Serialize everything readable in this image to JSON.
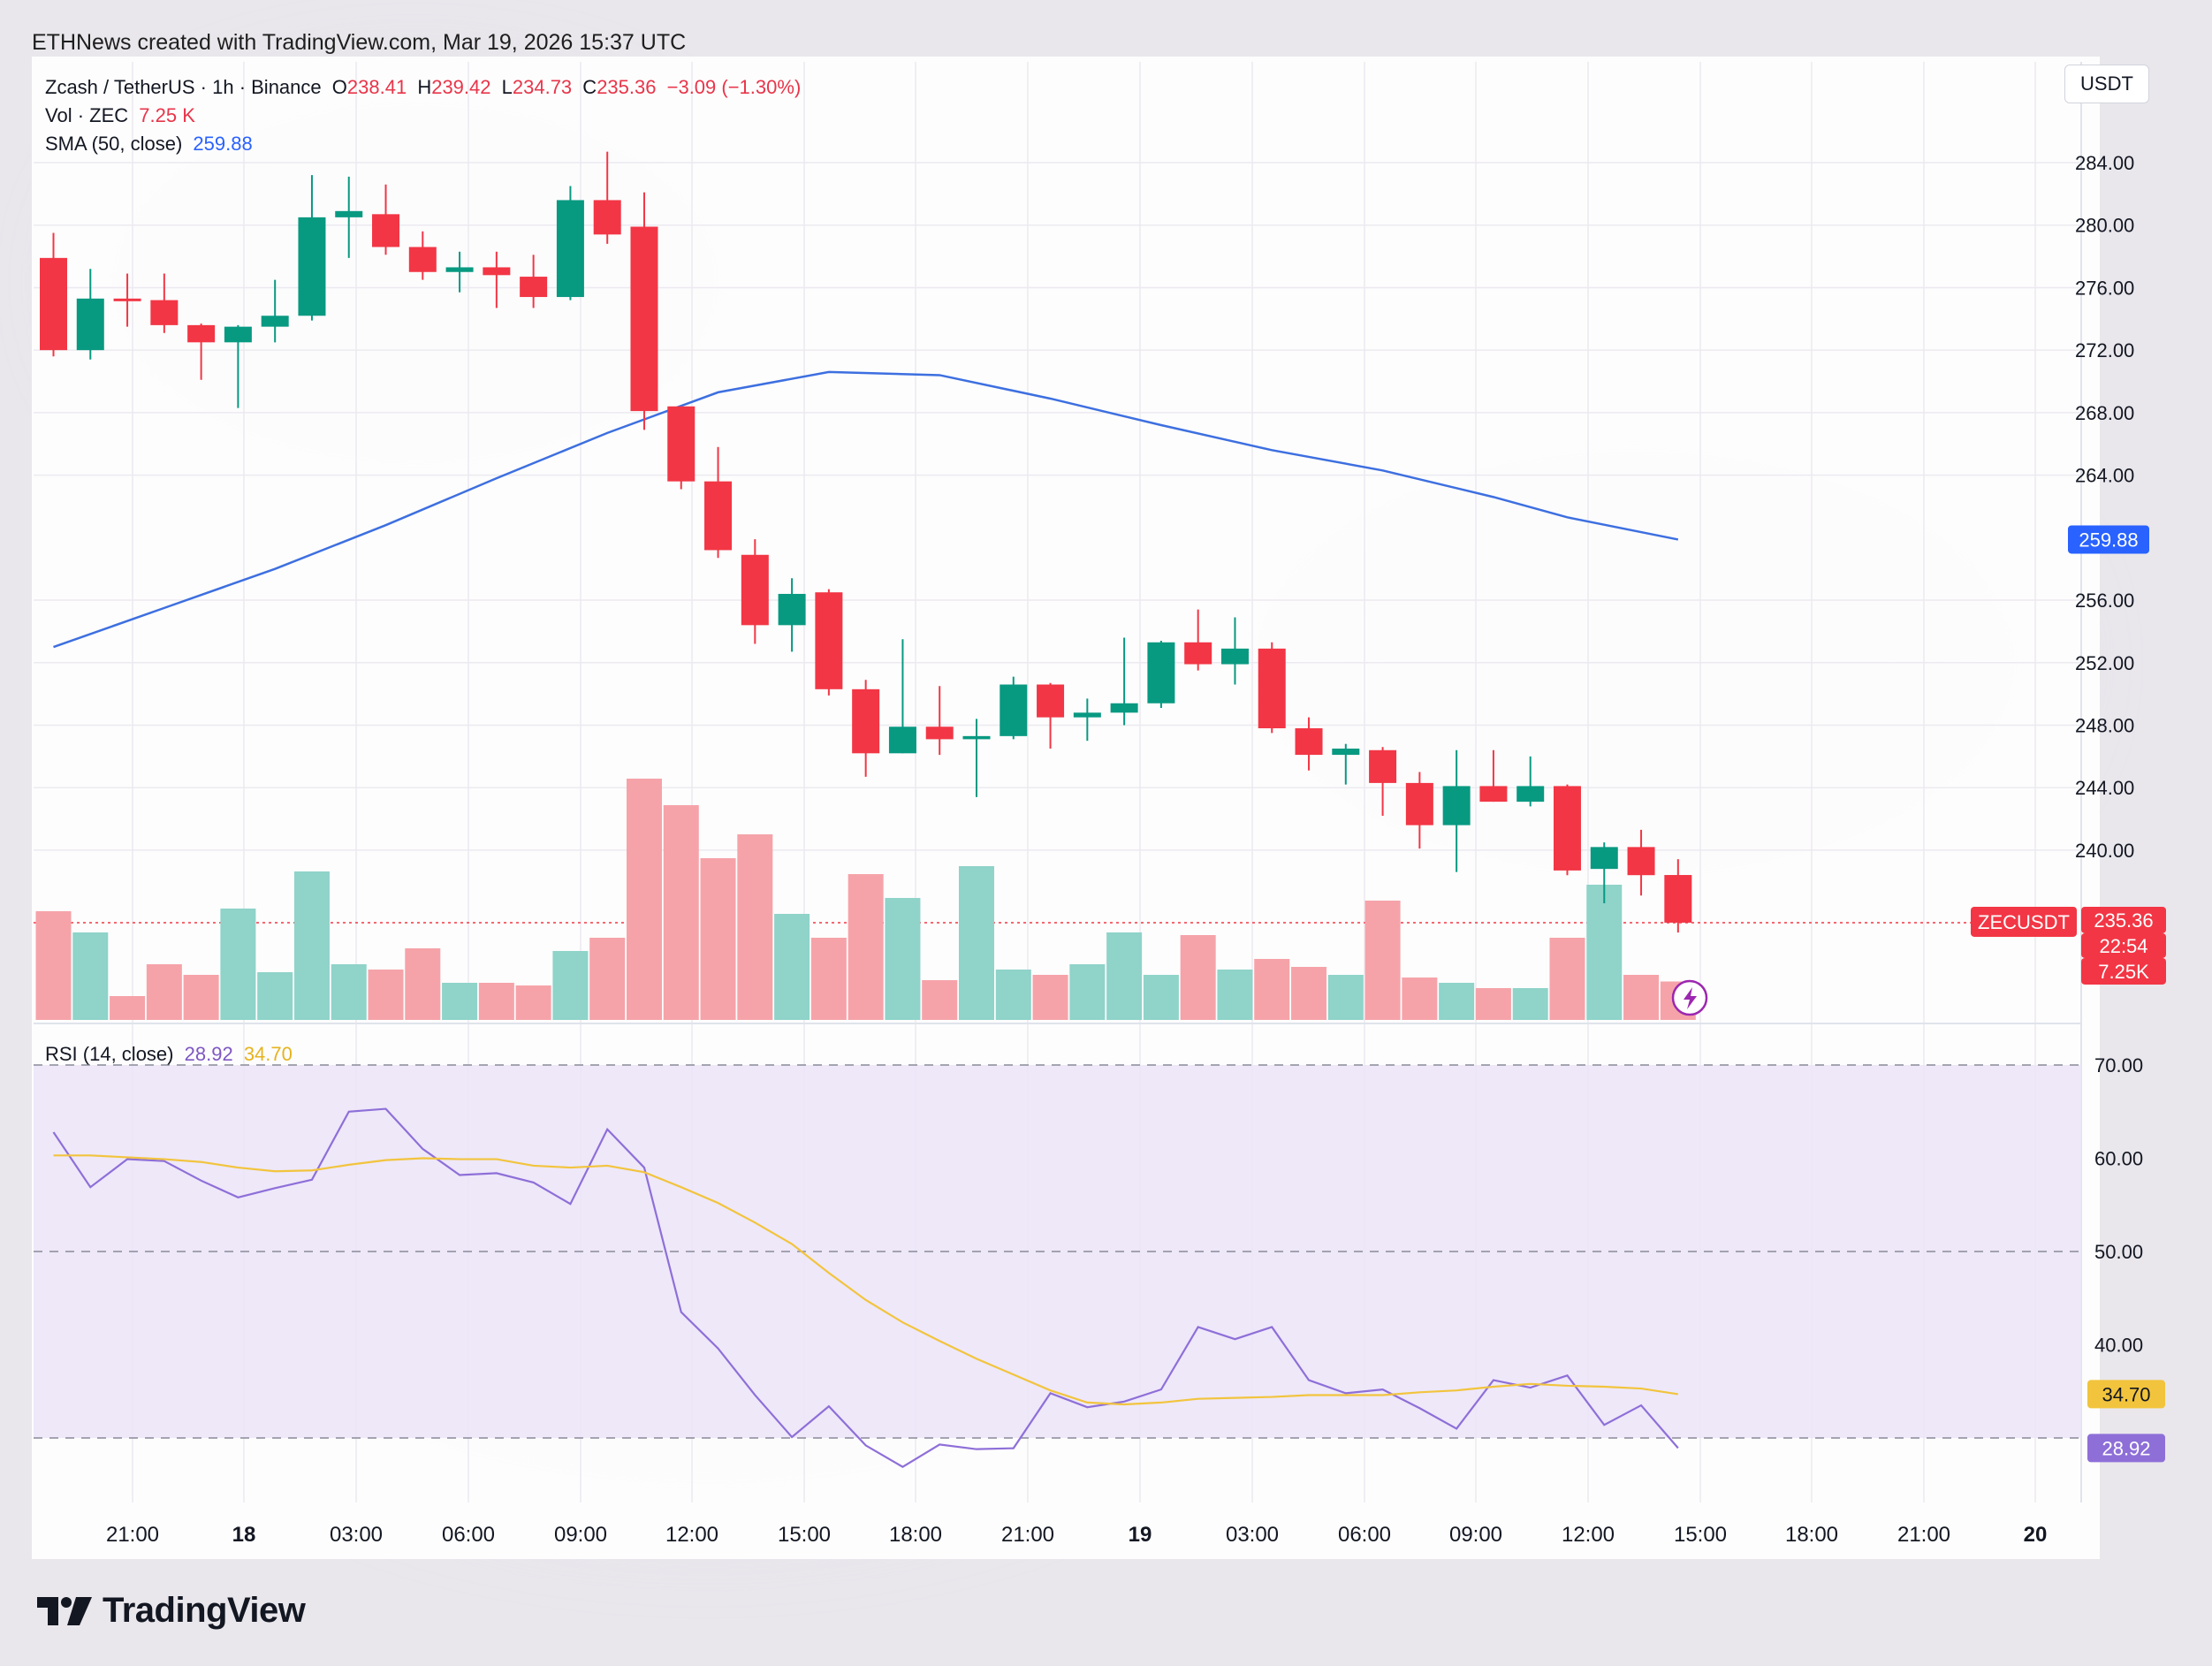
{
  "header": {
    "caption": "ETHNews created with TradingView.com, Mar 19, 2026 15:37 UTC"
  },
  "legend": {
    "symbol": "Zcash / TetherUS · 1h · Binance",
    "o_label": "O",
    "o_value": "238.41",
    "h_label": "H",
    "h_value": "239.42",
    "l_label": "L",
    "l_value": "234.73",
    "c_label": "C",
    "c_value": "235.36",
    "change": "−3.09 (−1.30%)",
    "vol_label": "Vol · ZEC",
    "vol_value": "7.25 K",
    "sma_label": "SMA (50, close)",
    "sma_value": "259.88",
    "rsi_label": "RSI (14, close)",
    "rsi_value": "28.92",
    "rsi_ma_value": "34.70"
  },
  "toolbar": {
    "currency": "USDT"
  },
  "badges": {
    "symbol": "ZECUSDT",
    "price": "235.36",
    "countdown": "22:54",
    "volume": "7.25K",
    "sma": "259.88",
    "rsi_ma": "34.70",
    "rsi": "28.92"
  },
  "brand": {
    "name": "TradingView"
  },
  "colors": {
    "up": "#089981",
    "down": "#f23645",
    "up_volume": "#8fd3c9",
    "down_volume": "#f5a3a9",
    "sma": "#3d6fe0",
    "rsi": "#8e6fd8",
    "rsi_ma": "#f2c43d",
    "rsi_band": "#ece6f8"
  },
  "chart_data": [
    {
      "type": "candlestick",
      "title": "Zcash / TetherUS · 1h · Binance",
      "price_ticks": [
        "284.00",
        "280.00",
        "276.00",
        "272.00",
        "268.00",
        "264.00",
        "256.00",
        "252.00",
        "248.00",
        "244.00",
        "240.00"
      ],
      "ylim": [
        232,
        286
      ],
      "time_ticks": [
        {
          "label": "21:00",
          "bold": false
        },
        {
          "label": "18",
          "bold": true
        },
        {
          "label": "03:00",
          "bold": false
        },
        {
          "label": "06:00",
          "bold": false
        },
        {
          "label": "09:00",
          "bold": false
        },
        {
          "label": "12:00",
          "bold": false
        },
        {
          "label": "15:00",
          "bold": false
        },
        {
          "label": "18:00",
          "bold": false
        },
        {
          "label": "21:00",
          "bold": false
        },
        {
          "label": "19",
          "bold": true
        },
        {
          "label": "03:00",
          "bold": false
        },
        {
          "label": "06:00",
          "bold": false
        },
        {
          "label": "09:00",
          "bold": false
        },
        {
          "label": "12:00",
          "bold": false
        },
        {
          "label": "15:00",
          "bold": false
        },
        {
          "label": "18:00",
          "bold": false
        },
        {
          "label": "21:00",
          "bold": false
        },
        {
          "label": "20",
          "bold": true
        }
      ],
      "candles": [
        {
          "o": 277.9,
          "h": 279.5,
          "l": 271.6,
          "c": 272.0
        },
        {
          "o": 272.0,
          "h": 277.2,
          "l": 271.4,
          "c": 275.3
        },
        {
          "o": 275.3,
          "h": 276.9,
          "l": 273.5,
          "c": 275.2
        },
        {
          "o": 275.2,
          "h": 276.9,
          "l": 273.1,
          "c": 273.6
        },
        {
          "o": 273.6,
          "h": 273.7,
          "l": 270.1,
          "c": 272.5
        },
        {
          "o": 272.5,
          "h": 273.6,
          "l": 268.3,
          "c": 273.5
        },
        {
          "o": 273.5,
          "h": 276.5,
          "l": 272.5,
          "c": 274.2
        },
        {
          "o": 274.2,
          "h": 283.2,
          "l": 273.9,
          "c": 280.5
        },
        {
          "o": 280.5,
          "h": 283.1,
          "l": 277.9,
          "c": 280.9
        },
        {
          "o": 280.7,
          "h": 282.6,
          "l": 278.1,
          "c": 278.6
        },
        {
          "o": 278.6,
          "h": 279.6,
          "l": 276.5,
          "c": 277.0
        },
        {
          "o": 277.0,
          "h": 278.3,
          "l": 275.7,
          "c": 277.3
        },
        {
          "o": 277.3,
          "h": 278.3,
          "l": 274.7,
          "c": 276.8
        },
        {
          "o": 276.7,
          "h": 278.1,
          "l": 274.7,
          "c": 275.4
        },
        {
          "o": 275.4,
          "h": 282.5,
          "l": 275.2,
          "c": 281.6
        },
        {
          "o": 281.6,
          "h": 284.7,
          "l": 278.8,
          "c": 279.4
        },
        {
          "o": 279.9,
          "h": 282.1,
          "l": 266.9,
          "c": 268.1
        },
        {
          "o": 268.4,
          "h": 268.4,
          "l": 263.1,
          "c": 263.6
        },
        {
          "o": 263.6,
          "h": 265.8,
          "l": 258.7,
          "c": 259.2
        },
        {
          "o": 258.9,
          "h": 259.9,
          "l": 253.2,
          "c": 254.4
        },
        {
          "o": 254.4,
          "h": 257.4,
          "l": 252.7,
          "c": 256.4
        },
        {
          "o": 256.5,
          "h": 256.7,
          "l": 249.9,
          "c": 250.3
        },
        {
          "o": 250.3,
          "h": 250.9,
          "l": 244.7,
          "c": 246.2
        },
        {
          "o": 246.2,
          "h": 253.5,
          "l": 246.2,
          "c": 247.9
        },
        {
          "o": 247.9,
          "h": 250.5,
          "l": 246.1,
          "c": 247.1
        },
        {
          "o": 247.1,
          "h": 248.4,
          "l": 243.4,
          "c": 247.3
        },
        {
          "o": 247.3,
          "h": 251.1,
          "l": 247.1,
          "c": 250.6
        },
        {
          "o": 250.6,
          "h": 250.7,
          "l": 246.5,
          "c": 248.5
        },
        {
          "o": 248.5,
          "h": 249.7,
          "l": 247.0,
          "c": 248.8
        },
        {
          "o": 248.8,
          "h": 253.6,
          "l": 248.0,
          "c": 249.4
        },
        {
          "o": 249.4,
          "h": 253.4,
          "l": 249.1,
          "c": 253.3
        },
        {
          "o": 253.3,
          "h": 255.4,
          "l": 251.5,
          "c": 251.9
        },
        {
          "o": 251.9,
          "h": 254.9,
          "l": 250.6,
          "c": 252.9
        },
        {
          "o": 252.9,
          "h": 253.3,
          "l": 247.5,
          "c": 247.8
        },
        {
          "o": 247.8,
          "h": 248.5,
          "l": 245.1,
          "c": 246.1
        },
        {
          "o": 246.1,
          "h": 246.8,
          "l": 244.2,
          "c": 246.5
        },
        {
          "o": 246.4,
          "h": 246.6,
          "l": 242.2,
          "c": 244.3
        },
        {
          "o": 244.3,
          "h": 245.0,
          "l": 240.1,
          "c": 241.6
        },
        {
          "o": 241.6,
          "h": 246.4,
          "l": 238.6,
          "c": 244.1
        },
        {
          "o": 244.1,
          "h": 246.4,
          "l": 243.1,
          "c": 243.1
        },
        {
          "o": 243.1,
          "h": 246.0,
          "l": 242.8,
          "c": 244.1
        },
        {
          "o": 244.1,
          "h": 244.2,
          "l": 238.4,
          "c": 238.7
        },
        {
          "o": 238.8,
          "h": 240.5,
          "l": 236.6,
          "c": 240.2
        },
        {
          "o": 240.2,
          "h": 241.3,
          "l": 237.1,
          "c": 238.4
        },
        {
          "o": 238.41,
          "h": 239.42,
          "l": 234.73,
          "c": 235.36
        }
      ],
      "volume": [
        20.5,
        16.5,
        4.5,
        10.5,
        8.5,
        21.0,
        9.0,
        28.0,
        10.5,
        9.5,
        13.5,
        7.0,
        7.0,
        6.5,
        13.0,
        15.5,
        45.5,
        40.5,
        30.5,
        35.0,
        20.0,
        15.5,
        27.5,
        23.0,
        7.5,
        29.0,
        9.5,
        8.5,
        10.5,
        16.5,
        8.5,
        16.0,
        9.5,
        11.5,
        10.0,
        8.5,
        22.5,
        8.0,
        7.0,
        6.0,
        6.0,
        15.5,
        25.5,
        8.5,
        7.25
      ],
      "sma": [
        {
          "i": 0,
          "v": 253.0
        },
        {
          "i": 3,
          "v": 255.5
        },
        {
          "i": 6,
          "v": 258.0
        },
        {
          "i": 9,
          "v": 260.8
        },
        {
          "i": 12,
          "v": 263.8
        },
        {
          "i": 15,
          "v": 266.7
        },
        {
          "i": 18,
          "v": 269.3
        },
        {
          "i": 21,
          "v": 270.6
        },
        {
          "i": 24,
          "v": 270.4
        },
        {
          "i": 27,
          "v": 268.9
        },
        {
          "i": 30,
          "v": 267.2
        },
        {
          "i": 33,
          "v": 265.6
        },
        {
          "i": 36,
          "v": 264.3
        },
        {
          "i": 39,
          "v": 262.6
        },
        {
          "i": 41,
          "v": 261.3
        },
        {
          "i": 44,
          "v": 259.88
        }
      ]
    },
    {
      "type": "line",
      "title": "RSI (14, close)",
      "ticks": [
        "70.00",
        "60.00",
        "50.00",
        "40.00"
      ],
      "ylim": [
        26,
        72
      ],
      "band": [
        30,
        70
      ],
      "series": [
        {
          "name": "RSI",
          "values": [
            62.8,
            56.9,
            59.9,
            59.7,
            57.6,
            55.8,
            56.8,
            57.7,
            65.0,
            65.3,
            61.0,
            58.2,
            58.4,
            57.4,
            55.1,
            63.1,
            59.0,
            43.5,
            39.6,
            34.6,
            30.1,
            33.4,
            29.2,
            26.9,
            29.3,
            28.8,
            28.9,
            34.8,
            33.3,
            33.9,
            35.2,
            41.9,
            40.6,
            41.9,
            36.2,
            34.8,
            35.2,
            33.2,
            31.0,
            36.2,
            35.4,
            36.7,
            31.4,
            33.5,
            28.92
          ]
        },
        {
          "name": "RSI MA",
          "values": [
            60.3,
            60.3,
            60.1,
            59.9,
            59.6,
            59.0,
            58.6,
            58.7,
            59.3,
            59.8,
            60.0,
            59.9,
            59.9,
            59.2,
            59.0,
            59.2,
            58.5,
            56.9,
            55.2,
            53.1,
            50.8,
            47.7,
            44.8,
            42.4,
            40.4,
            38.5,
            36.8,
            35.1,
            33.8,
            33.6,
            33.8,
            34.2,
            34.3,
            34.4,
            34.6,
            34.6,
            34.6,
            34.9,
            35.1,
            35.5,
            35.8,
            35.6,
            35.5,
            35.3,
            34.7
          ]
        }
      ]
    }
  ]
}
